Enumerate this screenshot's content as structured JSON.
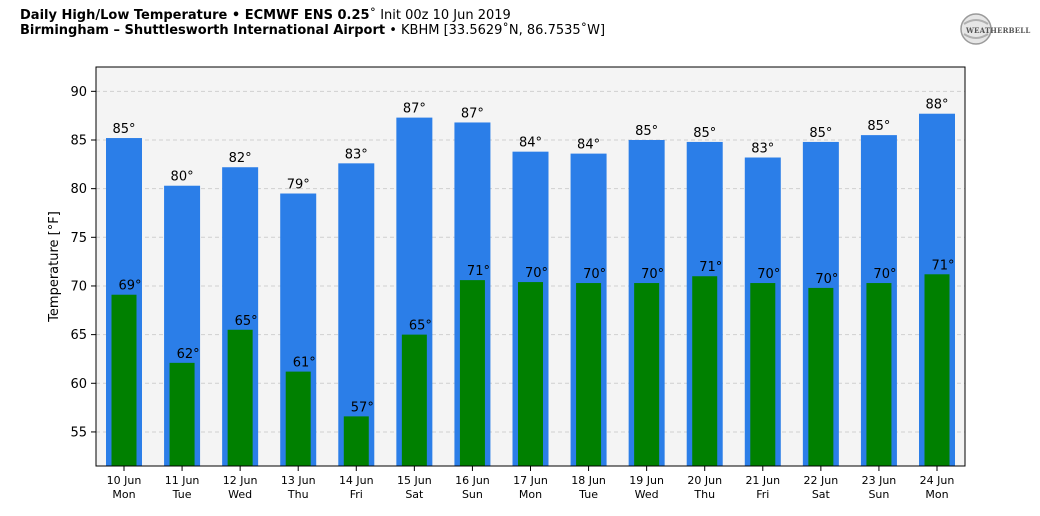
{
  "header": {
    "title_bold": "Daily High/Low Temperature • ECMWF ENS 0.25",
    "title_degree": "˚",
    "title_init": " Init 00z 10 Jun 2019",
    "subtitle_bold": "Birmingham – Shuttlesworth International Airport",
    "subtitle_station": " • KBHM [33.5629˚N, 86.7535˚W]"
  },
  "logo": {
    "text": "WEATHERBELL"
  },
  "colors": {
    "high": "#2b7ee8",
    "low": "#008000",
    "plot_bg": "#f4f4f4",
    "grid": "#cfcfcf"
  },
  "chart_data": {
    "type": "bar",
    "title": "Daily High/Low Temperature • ECMWF ENS 0.25˚ Init 00z 10 Jun 2019",
    "ylabel": "Temperature [°F]",
    "xlabel": "",
    "ylim": [
      51.5,
      92.5
    ],
    "yticks": [
      55,
      60,
      65,
      70,
      75,
      80,
      85,
      90
    ],
    "grid": true,
    "categories": [
      [
        "10 Jun",
        "Mon"
      ],
      [
        "11 Jun",
        "Tue"
      ],
      [
        "12 Jun",
        "Wed"
      ],
      [
        "13 Jun",
        "Thu"
      ],
      [
        "14 Jun",
        "Fri"
      ],
      [
        "15 Jun",
        "Sat"
      ],
      [
        "16 Jun",
        "Sun"
      ],
      [
        "17 Jun",
        "Mon"
      ],
      [
        "18 Jun",
        "Tue"
      ],
      [
        "19 Jun",
        "Wed"
      ],
      [
        "20 Jun",
        "Thu"
      ],
      [
        "21 Jun",
        "Fri"
      ],
      [
        "22 Jun",
        "Sat"
      ],
      [
        "23 Jun",
        "Sun"
      ],
      [
        "24 Jun",
        "Mon"
      ]
    ],
    "series": [
      {
        "key": "high",
        "values": [
          85.2,
          80.3,
          82.2,
          79.5,
          82.6,
          87.3,
          86.8,
          83.8,
          83.6,
          85.0,
          84.8,
          83.2,
          84.8,
          85.5,
          87.7
        ],
        "labels": [
          "85°",
          "80°",
          "82°",
          "79°",
          "83°",
          "87°",
          "87°",
          "84°",
          "84°",
          "85°",
          "85°",
          "83°",
          "85°",
          "85°",
          "88°"
        ]
      },
      {
        "key": "low",
        "values": [
          69.1,
          62.1,
          65.5,
          61.2,
          56.6,
          65.0,
          70.6,
          70.4,
          70.3,
          70.3,
          71.0,
          70.3,
          69.8,
          70.3,
          71.2
        ],
        "labels": [
          "69°",
          "62°",
          "65°",
          "61°",
          "57°",
          "65°",
          "71°",
          "70°",
          "70°",
          "70°",
          "71°",
          "70°",
          "70°",
          "70°",
          "71°"
        ]
      }
    ]
  }
}
